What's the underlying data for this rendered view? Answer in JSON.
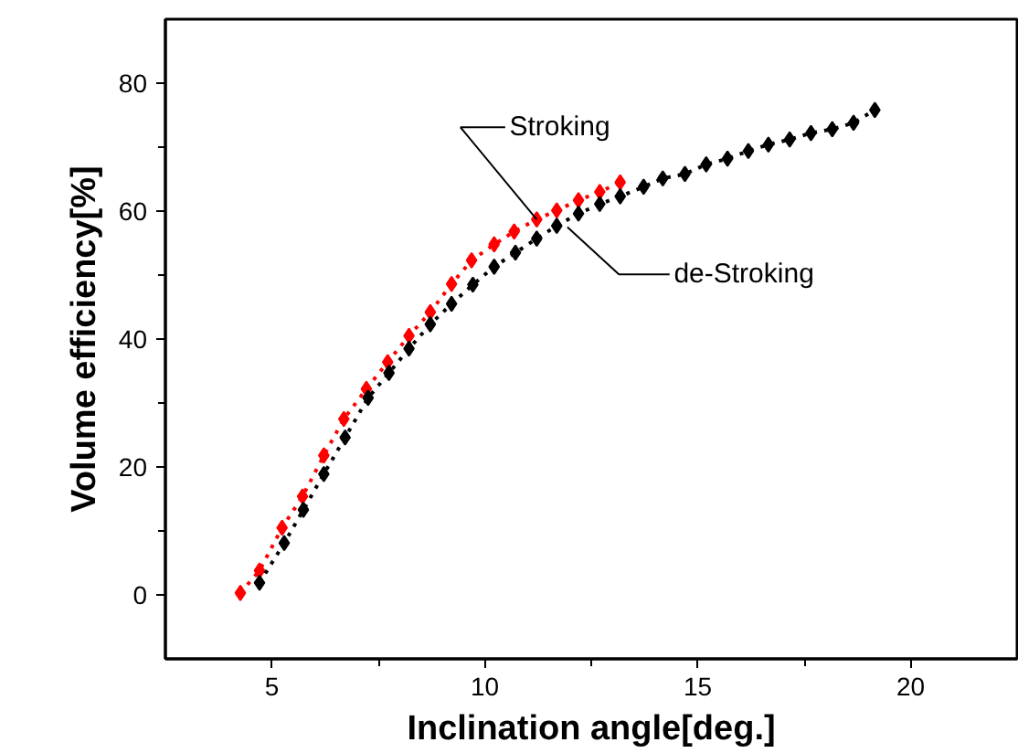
{
  "chart_data": {
    "type": "line",
    "xlabel": "Inclination angle[deg.]",
    "ylabel": "Volume efficiency[%]",
    "xlim": [
      2.5,
      22.5
    ],
    "ylim": [
      -10,
      90
    ],
    "xticks": [
      5,
      {
        "value": 7.5,
        "label": null
      },
      10,
      {
        "value": 12.5,
        "label": null
      },
      15,
      {
        "value": 17.5,
        "label": null
      },
      20
    ],
    "yticks": [
      0,
      {
        "value": 10,
        "label": null
      },
      20,
      {
        "value": 30,
        "label": null
      },
      40,
      {
        "value": 50,
        "label": null
      },
      60,
      {
        "value": 70,
        "label": null
      },
      80
    ],
    "grid": false,
    "marker": "diamond",
    "line_style": "dotted",
    "annotations": [
      {
        "text": "Stroking",
        "x": 11.22,
        "y": 58.7
      },
      {
        "text": "de-Stroking",
        "x": 11.94,
        "y": 57.5
      }
    ],
    "series": [
      {
        "color": "#ff0000",
        "x": [
          4.26,
          4.71,
          5.24,
          5.72,
          6.22,
          6.69,
          7.22,
          7.72,
          8.22,
          8.72,
          9.22,
          9.69,
          10.22,
          10.69,
          11.22,
          11.69,
          12.2,
          12.7,
          13.18
        ],
        "values": [
          0.3,
          3.8,
          10.5,
          15.4,
          21.8,
          27.5,
          32.2,
          36.4,
          40.5,
          44.2,
          48.6,
          52.3,
          54.8,
          56.8,
          58.7,
          60.1,
          61.7,
          63.0,
          64.5
        ]
      },
      {
        "color": "#000000",
        "x": [
          4.71,
          5.29,
          5.74,
          6.22,
          6.72,
          7.26,
          7.75,
          8.22,
          8.72,
          9.22,
          9.72,
          10.22,
          10.72,
          11.22,
          11.69,
          12.2,
          12.7,
          13.18,
          13.73,
          14.18,
          14.7,
          15.2,
          15.7,
          16.19,
          16.66,
          17.16,
          17.66,
          18.16,
          18.66,
          19.16
        ],
        "values": [
          1.9,
          8.1,
          13.3,
          18.9,
          24.6,
          30.8,
          34.7,
          38.5,
          42.3,
          45.5,
          48.5,
          51.3,
          53.5,
          55.7,
          57.7,
          59.6,
          61.1,
          62.3,
          63.8,
          65.1,
          65.8,
          67.3,
          68.2,
          69.4,
          70.4,
          71.2,
          72.2,
          72.8,
          73.8,
          75.8
        ]
      }
    ]
  }
}
